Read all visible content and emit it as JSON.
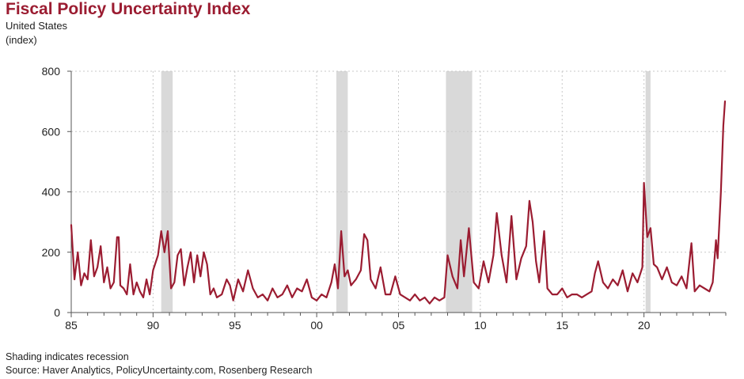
{
  "header": {
    "title": "Fiscal Policy Uncertainty Index",
    "subtitle": "United States",
    "units": "(index)"
  },
  "footer": {
    "note": "Shading indicates recession",
    "source": "Source: Haver Analytics, PolicyUncertainty.com, Rosenberg Research"
  },
  "colors": {
    "line": "#9b1c31",
    "recession": "#d9d9d9",
    "grid": "#c8c8c8",
    "title": "#9b1c31"
  },
  "chart_data": {
    "type": "line",
    "title": "Fiscal Policy Uncertainty Index",
    "ylabel": "(index)",
    "xlim": [
      1985,
      2025
    ],
    "ylim": [
      0,
      800
    ],
    "grid": true,
    "x_ticks": [
      {
        "value": 1985,
        "label": "85"
      },
      {
        "value": 1990,
        "label": "90"
      },
      {
        "value": 1995,
        "label": "95"
      },
      {
        "value": 2000,
        "label": "00"
      },
      {
        "value": 2005,
        "label": "05"
      },
      {
        "value": 2010,
        "label": "10"
      },
      {
        "value": 2015,
        "label": "15"
      },
      {
        "value": 2020,
        "label": "20"
      }
    ],
    "y_ticks": [
      {
        "value": 0,
        "label": "0"
      },
      {
        "value": 200,
        "label": "200"
      },
      {
        "value": 400,
        "label": "400"
      },
      {
        "value": 600,
        "label": "600"
      },
      {
        "value": 800,
        "label": "800"
      }
    ],
    "recessions": [
      {
        "start": 1990.5,
        "end": 1991.2
      },
      {
        "start": 2001.2,
        "end": 2001.9
      },
      {
        "start": 2007.9,
        "end": 2009.5
      },
      {
        "start": 2020.1,
        "end": 2020.4
      }
    ],
    "series": [
      {
        "points": [
          [
            1985.0,
            290
          ],
          [
            1985.2,
            110
          ],
          [
            1985.4,
            200
          ],
          [
            1985.6,
            90
          ],
          [
            1985.8,
            130
          ],
          [
            1986.0,
            110
          ],
          [
            1986.2,
            240
          ],
          [
            1986.4,
            120
          ],
          [
            1986.6,
            150
          ],
          [
            1986.8,
            220
          ],
          [
            1987.0,
            100
          ],
          [
            1987.2,
            150
          ],
          [
            1987.4,
            80
          ],
          [
            1987.6,
            100
          ],
          [
            1987.8,
            250
          ],
          [
            1987.9,
            250
          ],
          [
            1988.0,
            90
          ],
          [
            1988.2,
            80
          ],
          [
            1988.4,
            60
          ],
          [
            1988.6,
            160
          ],
          [
            1988.8,
            60
          ],
          [
            1989.0,
            100
          ],
          [
            1989.2,
            70
          ],
          [
            1989.4,
            50
          ],
          [
            1989.6,
            110
          ],
          [
            1989.8,
            60
          ],
          [
            1990.0,
            140
          ],
          [
            1990.3,
            190
          ],
          [
            1990.5,
            270
          ],
          [
            1990.7,
            200
          ],
          [
            1990.9,
            270
          ],
          [
            1991.1,
            80
          ],
          [
            1991.3,
            100
          ],
          [
            1991.5,
            190
          ],
          [
            1991.7,
            210
          ],
          [
            1991.9,
            90
          ],
          [
            1992.1,
            150
          ],
          [
            1992.3,
            200
          ],
          [
            1992.5,
            100
          ],
          [
            1992.7,
            190
          ],
          [
            1992.9,
            120
          ],
          [
            1993.1,
            200
          ],
          [
            1993.3,
            160
          ],
          [
            1993.5,
            60
          ],
          [
            1993.7,
            80
          ],
          [
            1993.9,
            50
          ],
          [
            1994.2,
            60
          ],
          [
            1994.5,
            110
          ],
          [
            1994.7,
            90
          ],
          [
            1994.9,
            40
          ],
          [
            1995.2,
            110
          ],
          [
            1995.5,
            70
          ],
          [
            1995.8,
            140
          ],
          [
            1996.1,
            80
          ],
          [
            1996.4,
            50
          ],
          [
            1996.7,
            60
          ],
          [
            1997.0,
            40
          ],
          [
            1997.3,
            80
          ],
          [
            1997.6,
            50
          ],
          [
            1997.9,
            60
          ],
          [
            1998.2,
            90
          ],
          [
            1998.5,
            50
          ],
          [
            1998.8,
            80
          ],
          [
            1999.1,
            70
          ],
          [
            1999.4,
            110
          ],
          [
            1999.7,
            50
          ],
          [
            2000.0,
            40
          ],
          [
            2000.3,
            60
          ],
          [
            2000.6,
            50
          ],
          [
            2000.9,
            100
          ],
          [
            2001.1,
            160
          ],
          [
            2001.3,
            80
          ],
          [
            2001.5,
            270
          ],
          [
            2001.7,
            120
          ],
          [
            2001.9,
            140
          ],
          [
            2002.1,
            90
          ],
          [
            2002.4,
            110
          ],
          [
            2002.7,
            140
          ],
          [
            2002.9,
            260
          ],
          [
            2003.1,
            240
          ],
          [
            2003.3,
            110
          ],
          [
            2003.6,
            80
          ],
          [
            2003.9,
            150
          ],
          [
            2004.2,
            60
          ],
          [
            2004.5,
            60
          ],
          [
            2004.8,
            120
          ],
          [
            2005.1,
            60
          ],
          [
            2005.4,
            50
          ],
          [
            2005.7,
            40
          ],
          [
            2006.0,
            60
          ],
          [
            2006.3,
            40
          ],
          [
            2006.6,
            50
          ],
          [
            2006.9,
            30
          ],
          [
            2007.2,
            50
          ],
          [
            2007.5,
            40
          ],
          [
            2007.8,
            50
          ],
          [
            2008.0,
            190
          ],
          [
            2008.3,
            120
          ],
          [
            2008.6,
            80
          ],
          [
            2008.8,
            240
          ],
          [
            2009.0,
            120
          ],
          [
            2009.3,
            280
          ],
          [
            2009.6,
            100
          ],
          [
            2009.9,
            80
          ],
          [
            2010.2,
            170
          ],
          [
            2010.5,
            100
          ],
          [
            2010.8,
            190
          ],
          [
            2011.0,
            330
          ],
          [
            2011.3,
            190
          ],
          [
            2011.6,
            100
          ],
          [
            2011.9,
            320
          ],
          [
            2012.2,
            110
          ],
          [
            2012.5,
            180
          ],
          [
            2012.8,
            220
          ],
          [
            2013.0,
            370
          ],
          [
            2013.2,
            300
          ],
          [
            2013.4,
            170
          ],
          [
            2013.6,
            100
          ],
          [
            2013.9,
            270
          ],
          [
            2014.1,
            80
          ],
          [
            2014.4,
            60
          ],
          [
            2014.7,
            60
          ],
          [
            2015.0,
            80
          ],
          [
            2015.3,
            50
          ],
          [
            2015.6,
            60
          ],
          [
            2015.9,
            60
          ],
          [
            2016.2,
            50
          ],
          [
            2016.5,
            60
          ],
          [
            2016.8,
            70
          ],
          [
            2017.0,
            130
          ],
          [
            2017.2,
            170
          ],
          [
            2017.5,
            100
          ],
          [
            2017.8,
            80
          ],
          [
            2018.1,
            110
          ],
          [
            2018.4,
            90
          ],
          [
            2018.7,
            140
          ],
          [
            2019.0,
            70
          ],
          [
            2019.3,
            130
          ],
          [
            2019.6,
            100
          ],
          [
            2019.9,
            150
          ],
          [
            2020.0,
            430
          ],
          [
            2020.2,
            250
          ],
          [
            2020.4,
            280
          ],
          [
            2020.6,
            160
          ],
          [
            2020.8,
            150
          ],
          [
            2021.1,
            110
          ],
          [
            2021.4,
            150
          ],
          [
            2021.7,
            100
          ],
          [
            2022.0,
            90
          ],
          [
            2022.3,
            120
          ],
          [
            2022.6,
            80
          ],
          [
            2022.9,
            230
          ],
          [
            2023.1,
            70
          ],
          [
            2023.4,
            90
          ],
          [
            2023.7,
            80
          ],
          [
            2024.0,
            70
          ],
          [
            2024.2,
            100
          ],
          [
            2024.4,
            240
          ],
          [
            2024.5,
            180
          ],
          [
            2024.7,
            400
          ],
          [
            2024.85,
            620
          ],
          [
            2024.95,
            700
          ]
        ]
      }
    ]
  }
}
